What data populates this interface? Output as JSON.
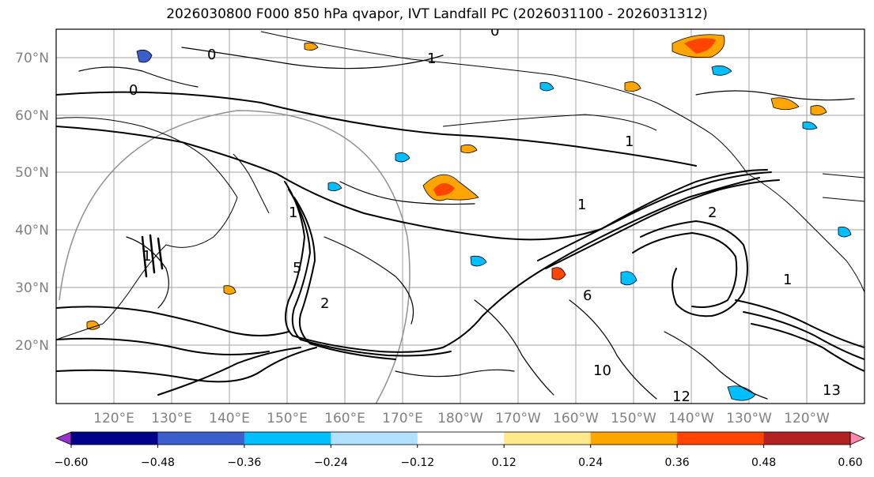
{
  "title": "2026030800 F000 850 hPa qvapor, IVT Landfall PC (2026031100 - 2026031312)",
  "map": {
    "lat_labels": [
      "70°N",
      "60°N",
      "50°N",
      "40°N",
      "30°N",
      "20°N"
    ],
    "lon_labels": [
      "120°E",
      "130°E",
      "140°E",
      "150°E",
      "160°E",
      "170°E",
      "180°W",
      "170°W",
      "160°W",
      "150°W",
      "140°W",
      "130°W",
      "120°W"
    ],
    "contour_labels": [
      "0",
      "0",
      "0",
      "1",
      "1",
      "1",
      "1",
      "1",
      "1",
      "2",
      "2",
      "5",
      "6",
      "10",
      "12",
      "13"
    ],
    "colors": {
      "coastline": "#000000",
      "gridline": "#a0a0a0",
      "contour": "#000000"
    }
  },
  "colorbar": {
    "tick_labels": [
      "−0.60",
      "−0.48",
      "−0.36",
      "−0.24",
      "−0.12",
      "0.12",
      "0.24",
      "0.36",
      "0.48",
      "0.60"
    ],
    "colors": [
      "#9932cc",
      "#00008b",
      "#3a5fcd",
      "#00bfff",
      "#b0e2ff",
      "#ffffff",
      "#ffe98b",
      "#ffa500",
      "#ff4500",
      "#b22222",
      "#ff88aa"
    ]
  }
}
